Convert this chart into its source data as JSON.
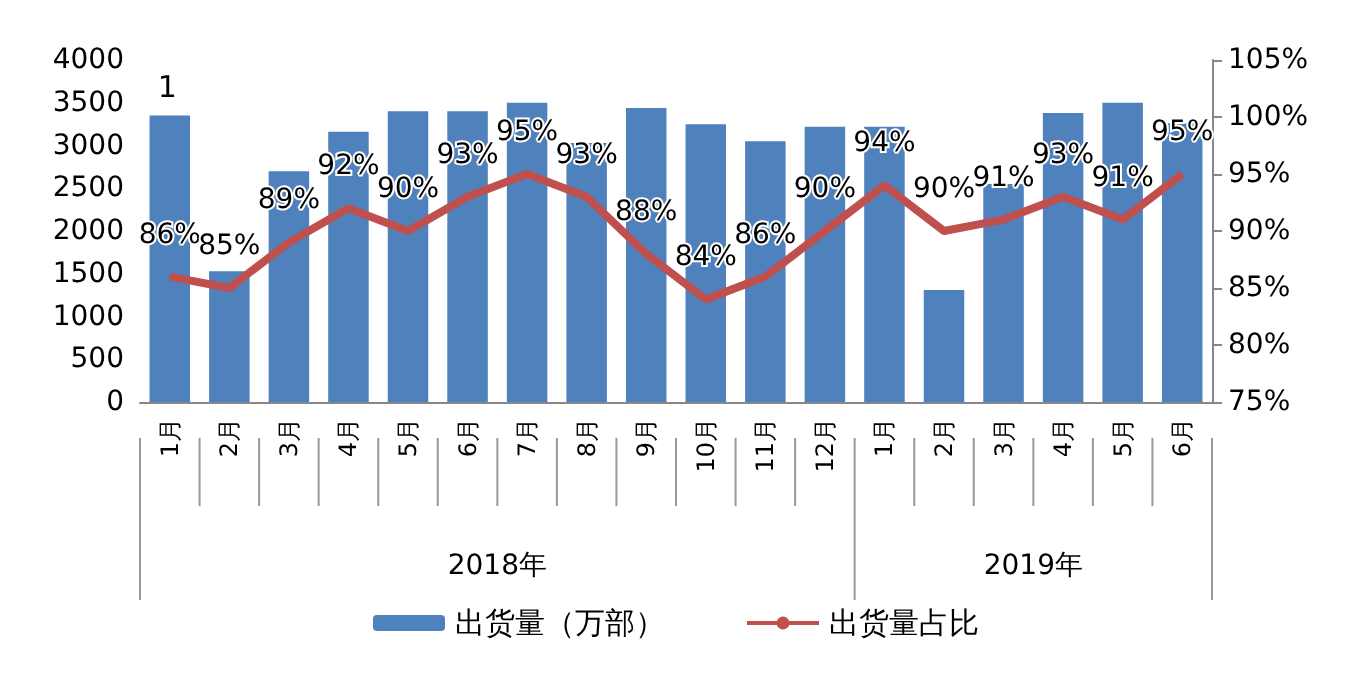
{
  "chart_data": {
    "type": "bar",
    "categories": [
      "1月",
      "2月",
      "3月",
      "4月",
      "5月",
      "6月",
      "7月",
      "8月",
      "9月",
      "10月",
      "11月",
      "12月",
      "1月",
      "2月",
      "3月",
      "4月",
      "5月",
      "6月"
    ],
    "series": [
      {
        "name": "出货量（万部）",
        "color": "#4f81bd",
        "values": [
          3350,
          1530,
          2700,
          3160,
          3400,
          3400,
          3500,
          3030,
          3440,
          3250,
          3050,
          3220,
          3220,
          1310,
          2550,
          3380,
          3500,
          3260
        ]
      },
      {
        "name": "出货量占比",
        "type": "line",
        "axis": "y2",
        "color": "#c0504d",
        "data_labels": true,
        "marker": "none",
        "values": [
          86,
          85,
          89,
          92,
          90,
          93,
          95,
          93,
          88,
          84,
          86,
          90,
          94,
          90,
          91,
          93,
          91,
          95
        ],
        "value_labels": [
          "86%",
          "85%",
          "89%",
          "92%",
          "90%",
          "93%",
          "95%",
          "93%",
          "88%",
          "84%",
          "86%",
          "90%",
          "94%",
          "90%",
          "91%",
          "93%",
          "91%",
          "95%"
        ]
      }
    ],
    "ylim": [
      0,
      4000
    ],
    "yticks": [
      0,
      500,
      1000,
      1500,
      2000,
      2500,
      3000,
      3500,
      4000
    ],
    "y2lim": [
      75,
      105
    ],
    "y2ticks": [
      {
        "value": 75,
        "label": "75%"
      },
      {
        "value": 80,
        "label": "80%"
      },
      {
        "value": 85,
        "label": "85%"
      },
      {
        "value": 90,
        "label": "90%"
      },
      {
        "value": 95,
        "label": "95%"
      },
      {
        "value": 100,
        "label": "100%"
      },
      {
        "value": 105,
        "label": "105%"
      }
    ],
    "annotations": [
      "1",
      "2018年",
      "2019年"
    ],
    "grid": false,
    "legend": "bottom"
  }
}
